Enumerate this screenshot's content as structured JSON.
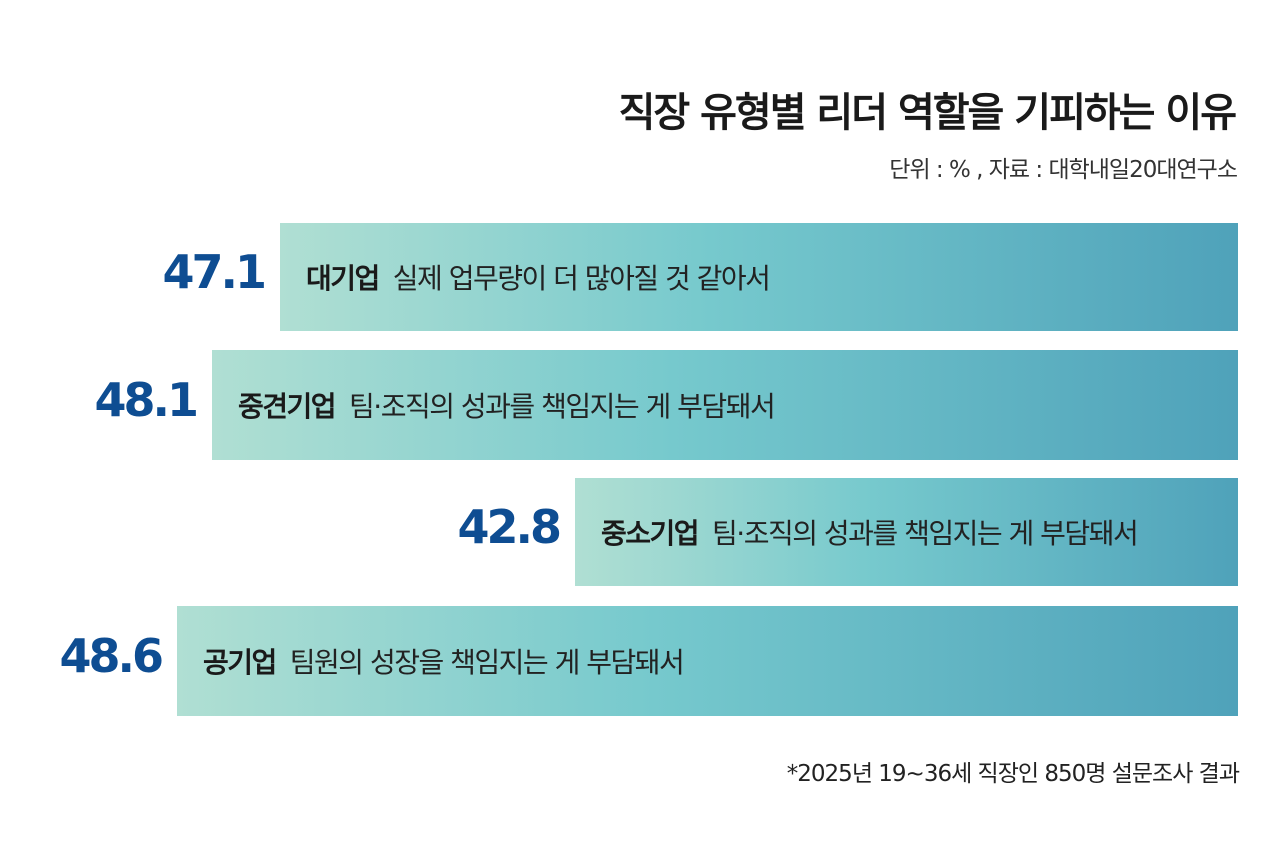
{
  "chart_data": {
    "type": "bar",
    "title": "직장 유형별 리더 역할을 기피하는 이유",
    "subtitle": "단위 : % , 자료 : 대학내일20대연구소",
    "footnote": "*2025년 19~36세 직장인 850명 설문조사 결과",
    "unit": "%",
    "categories": [
      "대기업",
      "중견기업",
      "중소기업",
      "공기업"
    ],
    "values": [
      47.1,
      48.1,
      42.8,
      48.6
    ],
    "value_labels": [
      "47.1",
      "48.1",
      "42.8",
      "48.6"
    ],
    "reasons": [
      "실제 업무량이 더 많아질 것 같아서",
      "팀·조직의 성과를 책임지는 게 부담돼서",
      "팀·조직의 성과를 책임지는 게 부담돼서",
      "팀원의 성장을 책임지는 게 부담돼서"
    ],
    "colors": {
      "gradient_start": "#b0dfd3",
      "gradient_mid": "#76c9cd",
      "gradient_end": "#4fa2ba",
      "value_text": "#0e4d92"
    }
  }
}
